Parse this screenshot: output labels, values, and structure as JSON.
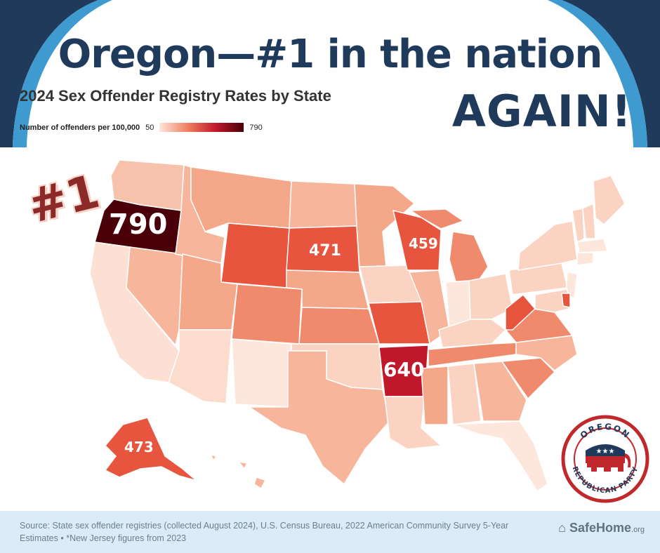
{
  "header": {
    "headline": "Oregon—#1 in the nation",
    "again": "AGAIN!",
    "subtitle": "2024 Sex Offender Registry Rates by State"
  },
  "legend": {
    "label": "Number of offenders per 100,000",
    "min": "50",
    "max": "790",
    "colors": [
      "#fde6dc",
      "#f08060",
      "#c0182a",
      "#4a0008"
    ]
  },
  "callouts": {
    "rank": "#1",
    "oregon": "790",
    "south_dakota": "471",
    "wisconsin": "459",
    "arkansas": "640",
    "alaska": "473"
  },
  "footer": {
    "source": "Source: State sex offender registries (collected August 2024), U.S. Census Bureau, 2022 American Community Survey 5-Year Estimates • *New Jersey figures from 2023",
    "brand": "SafeHome",
    "brand_suffix": ".org"
  },
  "logo": {
    "top_text": "OREGON",
    "bottom_text": "REPUBLICAN PARTY",
    "stars": "★★★"
  }
}
